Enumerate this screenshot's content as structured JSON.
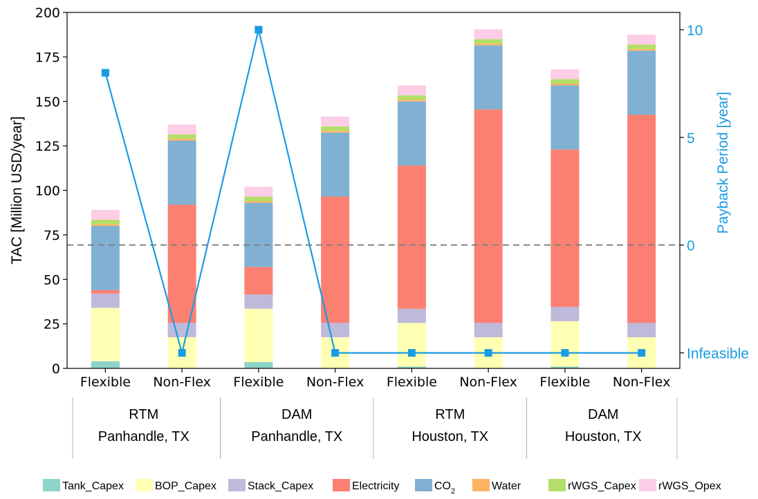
{
  "chart_data": {
    "type": "bar",
    "stacked": true,
    "categories": [
      "Flexible",
      "Non-Flex",
      "Flexible",
      "Non-Flex",
      "Flexible",
      "Non-Flex",
      "Flexible",
      "Non-Flex"
    ],
    "groups": [
      {
        "line1": "RTM",
        "line2": "Panhandle, TX"
      },
      {
        "line1": "DAM",
        "line2": "Panhandle, TX"
      },
      {
        "line1": "RTM",
        "line2": "Houston, TX"
      },
      {
        "line1": "DAM",
        "line2": "Houston, TX"
      }
    ],
    "series": [
      {
        "name": "Tank_Capex",
        "color": "#8dd3c7",
        "values": [
          4,
          0,
          3.5,
          0,
          1,
          0,
          1,
          0
        ]
      },
      {
        "name": "BOP_Capex",
        "color": "#ffffb3",
        "values": [
          30,
          17.5,
          30,
          17.5,
          24.5,
          17.5,
          25.5,
          17.5
        ]
      },
      {
        "name": "Stack_Capex",
        "color": "#bebada",
        "values": [
          8,
          8,
          8,
          8,
          8,
          8,
          8,
          8
        ]
      },
      {
        "name": "Electricity",
        "color": "#fb8072",
        "values": [
          2,
          66.5,
          15.5,
          71,
          80.5,
          120,
          88.5,
          117
        ]
      },
      {
        "name": "CO",
        "name_sub": "2",
        "color": "#80b1d3",
        "values": [
          36,
          36,
          36,
          36,
          36,
          36,
          36,
          36
        ]
      },
      {
        "name": "Water",
        "color": "#fdb462",
        "values": [
          1,
          1,
          1,
          1,
          1,
          1,
          1,
          1
        ]
      },
      {
        "name": "rWGS_Capex",
        "color": "#b3de69",
        "values": [
          2.5,
          2.5,
          2.5,
          2.5,
          2.5,
          2.5,
          2.5,
          2.5
        ]
      },
      {
        "name": "rWGS_Opex",
        "color": "#fccde5",
        "values": [
          5.5,
          5.5,
          5.5,
          5.5,
          5.5,
          5.5,
          5.5,
          5.5
        ]
      }
    ],
    "payback": {
      "color": "#1a9be3",
      "values": [
        8,
        null,
        10,
        null,
        null,
        null,
        null,
        null
      ],
      "infeasible_label": "Infeasible"
    },
    "ylabel": "TAC [Million USD/year]",
    "ylim": [
      0,
      200
    ],
    "yticks": [
      0,
      25,
      50,
      75,
      100,
      125,
      150,
      175,
      200
    ],
    "y2label": "Payback Period [year]",
    "y2ticks": [
      0,
      5,
      10
    ],
    "y2_zero_at_y": 69.3,
    "y2_per_year": 12.1,
    "y2_infeasible_at_y": 8.7,
    "reference_line_y": 69.3,
    "legend_position": "bottom"
  }
}
